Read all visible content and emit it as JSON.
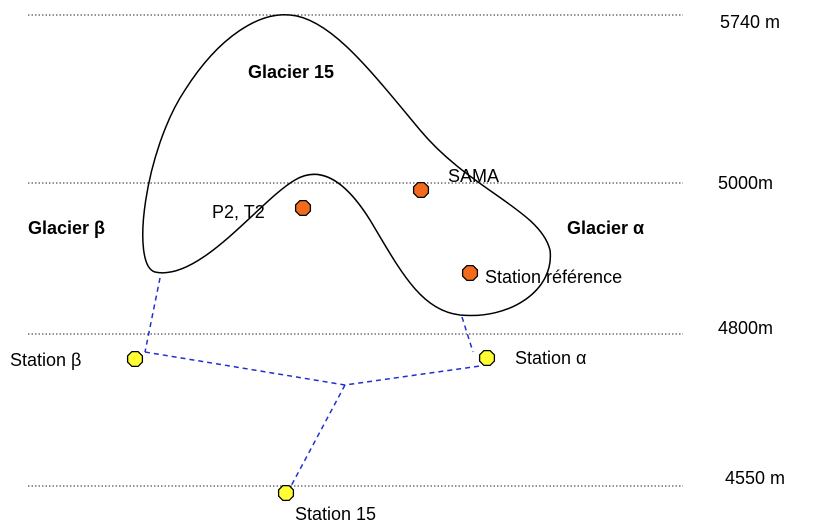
{
  "elevations": [
    "5740 m",
    "5000m",
    "4800m",
    "4550 m"
  ],
  "glaciers": [
    "Glacier 15",
    "Glacier β",
    "Glacier α"
  ],
  "sites": [
    "P2, T2",
    "SAMA",
    "Station référence"
  ],
  "stations": [
    "Station β",
    "Station α",
    "Station 15"
  ]
}
